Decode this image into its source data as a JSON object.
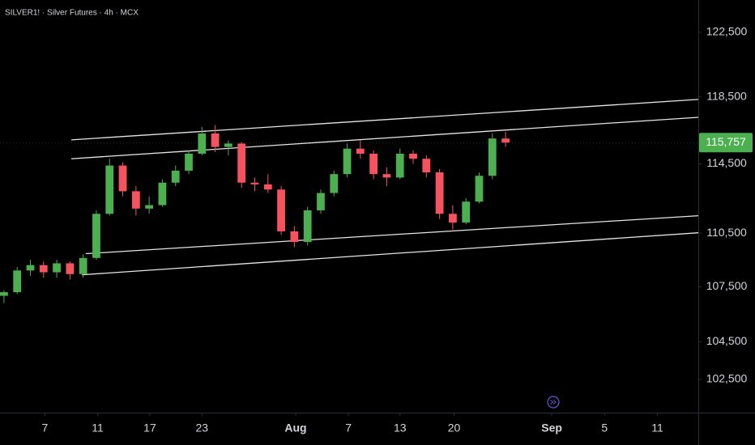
{
  "chart_data": {
    "type": "candlestick",
    "title": "SILVER1! · Silver Futures · 4h · MCX",
    "log_scale": true,
    "up_color": "#4caf50",
    "down_color": "#f7525f",
    "trendline_color": "#e6e6e6",
    "x": [
      0.3,
      1.3,
      2.3,
      3.3,
      4.3,
      5.3,
      6.3,
      7.3,
      8.3,
      9.3,
      10.3,
      11.3,
      12.3,
      13.3,
      14.3,
      15.3,
      16.3,
      17.3,
      18.3,
      19.3,
      20.3,
      21.3,
      22.3,
      23.3,
      24.3,
      25.3,
      26.3,
      27.3,
      28.3,
      29.3,
      30.3,
      31.3,
      32.3,
      33.3,
      34.3,
      35.3,
      36.3,
      37.3,
      38.3
    ],
    "open": [
      107000,
      107200,
      108400,
      108700,
      108300,
      108800,
      108200,
      109100,
      111600,
      114400,
      112900,
      111900,
      112100,
      113400,
      114100,
      115100,
      116300,
      115500,
      115700,
      113400,
      113300,
      113000,
      110600,
      110000,
      111800,
      112800,
      113900,
      115400,
      115100,
      113900,
      113700,
      115100,
      114800,
      114000,
      111600,
      111100,
      112300,
      113800,
      116000
    ],
    "high": [
      107300,
      108600,
      109000,
      108900,
      109000,
      108900,
      109300,
      111800,
      114800,
      114600,
      113200,
      112600,
      113600,
      114400,
      115300,
      116700,
      116800,
      115900,
      115800,
      113700,
      113900,
      113200,
      110900,
      112000,
      113000,
      114100,
      115700,
      115900,
      115300,
      114300,
      115400,
      115300,
      115000,
      114200,
      112100,
      112500,
      114000,
      116300,
      116400
    ],
    "low": [
      106600,
      107100,
      108100,
      108000,
      108000,
      107900,
      108000,
      109000,
      111500,
      112600,
      111500,
      111600,
      112000,
      113200,
      113900,
      115000,
      115200,
      115000,
      113100,
      112900,
      112800,
      110400,
      109700,
      109800,
      111600,
      112600,
      113700,
      114800,
      113600,
      113200,
      113600,
      114500,
      113700,
      111300,
      110700,
      111000,
      112200,
      113600,
      115500
    ],
    "close": [
      107200,
      108400,
      108700,
      108300,
      108800,
      108200,
      109100,
      111600,
      114400,
      112900,
      111900,
      112100,
      113400,
      114100,
      115100,
      116300,
      115500,
      115700,
      113400,
      113300,
      113000,
      110600,
      110000,
      111800,
      112800,
      113900,
      115400,
      115100,
      113900,
      113700,
      115100,
      114800,
      114000,
      111600,
      111100,
      112300,
      113800,
      116000,
      115757
    ],
    "trendlines": [
      {
        "x": [
          5.4,
          52.9
        ],
        "y": [
          115920,
          118350
        ]
      },
      {
        "x": [
          5.4,
          52.9
        ],
        "y": [
          114800,
          117270
        ]
      },
      {
        "x": [
          6.5,
          52.9
        ],
        "y": [
          109340,
          111490
        ]
      },
      {
        "x": [
          6.2,
          52.9
        ],
        "y": [
          108160,
          110520
        ]
      }
    ],
    "last_price": {
      "value": 115757,
      "label": "115,757"
    },
    "xlim": [
      0,
      52.9
    ],
    "xticks": [
      {
        "value": 3.4,
        "label": "7"
      },
      {
        "value": 7.4,
        "label": "11"
      },
      {
        "value": 11.35,
        "label": "17"
      },
      {
        "value": 15.3,
        "label": "23"
      },
      {
        "value": 22.4,
        "label": "Aug"
      },
      {
        "value": 26.4,
        "label": "7"
      },
      {
        "value": 30.3,
        "label": "13"
      },
      {
        "value": 34.4,
        "label": "20"
      },
      {
        "value": 41.8,
        "label": "Sep"
      },
      {
        "value": 45.8,
        "label": "5"
      },
      {
        "value": 49.8,
        "label": "11"
      }
    ],
    "ylim": [
      100770,
      124550
    ],
    "yticks": [
      {
        "value": 102500,
        "label": "102,500"
      },
      {
        "value": 104500,
        "label": "104,500"
      },
      {
        "value": 107500,
        "label": "107,500"
      },
      {
        "value": 110500,
        "label": "110,500"
      },
      {
        "value": 114500,
        "label": "114,500"
      },
      {
        "value": 118500,
        "label": "118,500"
      },
      {
        "value": 122500,
        "label": "122,500"
      }
    ]
  }
}
